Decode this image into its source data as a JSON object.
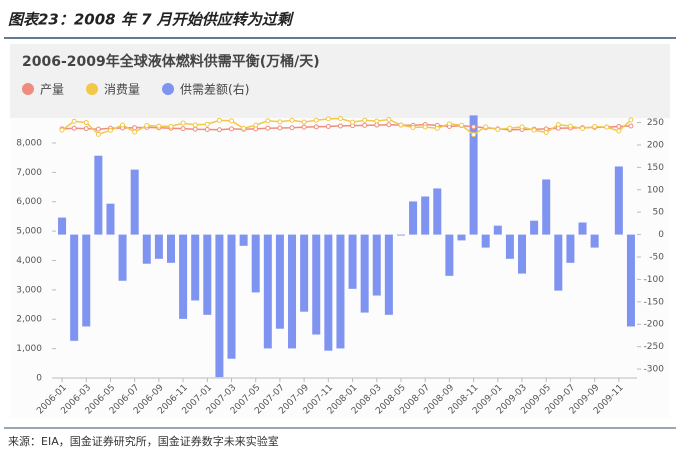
{
  "header": {
    "title": "图表23：2008 年 7 月开始供应转为过剩"
  },
  "chart_data": {
    "type": "combo",
    "title": "2006-2009年全球液体燃料供需平衡(万桶/天)",
    "categories": [
      "2006-01",
      null,
      "2006-03",
      null,
      "2006-05",
      null,
      "2006-07",
      null,
      "2006-09",
      null,
      "2006-11",
      null,
      "2007-01",
      null,
      "2007-03",
      null,
      "2007-05",
      null,
      "2007-07",
      null,
      "2007-09",
      null,
      "2007-11",
      null,
      "2008-01",
      null,
      "2008-03",
      null,
      "2008-05",
      null,
      "2008-07",
      null,
      "2008-09",
      null,
      "2008-11",
      null,
      "2009-01",
      null,
      "2009-03",
      null,
      "2009-05",
      null,
      "2009-07",
      null,
      "2009-09",
      null,
      "2009-11",
      null
    ],
    "series": [
      {
        "name": "产量",
        "type": "line",
        "axis": "y",
        "color": "#f08c7e",
        "values": [
          8480,
          8500,
          8490,
          8470,
          8500,
          8510,
          8520,
          8530,
          8520,
          8500,
          8490,
          8470,
          8460,
          8450,
          8480,
          8470,
          8480,
          8500,
          8510,
          8520,
          8540,
          8550,
          8560,
          8580,
          8590,
          8600,
          8610,
          8620,
          8610,
          8600,
          8630,
          8600,
          8560,
          8590,
          8550,
          8520,
          8480,
          8450,
          8460,
          8470,
          8480,
          8500,
          8510,
          8520,
          8530,
          8540,
          8560,
          8580
        ]
      },
      {
        "name": "消费量",
        "type": "line",
        "axis": "y",
        "color": "#f2c84b",
        "values": [
          8442,
          8737,
          8695,
          8294,
          8431,
          8613,
          8375,
          8595,
          8574,
          8563,
          8678,
          8617,
          8639,
          8768,
          8757,
          8495,
          8609,
          8754,
          8720,
          8774,
          8712,
          8773,
          8819,
          8834,
          8711,
          8774,
          8746,
          8799,
          8612,
          8526,
          8545,
          8497,
          8652,
          8603,
          8284,
          8549,
          8460,
          8504,
          8547,
          8439,
          8357,
          8625,
          8573,
          8493,
          8559,
          8540,
          8408,
          8785
        ]
      },
      {
        "name": "供需差额(右)",
        "type": "bar",
        "axis": "y2",
        "color": "#7f93f0",
        "values": [
          38,
          -237,
          -205,
          176,
          69,
          -103,
          145,
          -65,
          -54,
          -63,
          -188,
          -147,
          -179,
          -318,
          -277,
          -25,
          -129,
          -254,
          -210,
          -254,
          -172,
          -223,
          -259,
          -254,
          -121,
          -174,
          -136,
          -179,
          -2,
          74,
          85,
          103,
          -92,
          -13,
          266,
          -29,
          20,
          -54,
          -87,
          31,
          123,
          -125,
          -63,
          27,
          -29,
          0,
          152,
          -205
        ]
      }
    ],
    "ylim": [
      0,
      9000
    ],
    "yticks": [
      0,
      {
        "value": 1000,
        "label": "1,000"
      },
      {
        "value": 2000,
        "label": "2,000"
      },
      {
        "value": 3000,
        "label": "3,000"
      },
      {
        "value": 4000,
        "label": "4,000"
      },
      {
        "value": 5000,
        "label": "5,000"
      },
      {
        "value": 6000,
        "label": "6,000"
      },
      {
        "value": 7000,
        "label": "7,000"
      },
      {
        "value": 8000,
        "label": "8,000"
      }
    ],
    "y2lim": [
      -320,
      270
    ],
    "y2ticks": [
      -300,
      -250,
      -200,
      -150,
      -100,
      -50,
      0,
      50,
      100,
      150,
      200,
      250
    ],
    "grid": false
  },
  "footer": {
    "source": "来源：EIA，国金证券研究所，国金证券数字未来实验室"
  }
}
